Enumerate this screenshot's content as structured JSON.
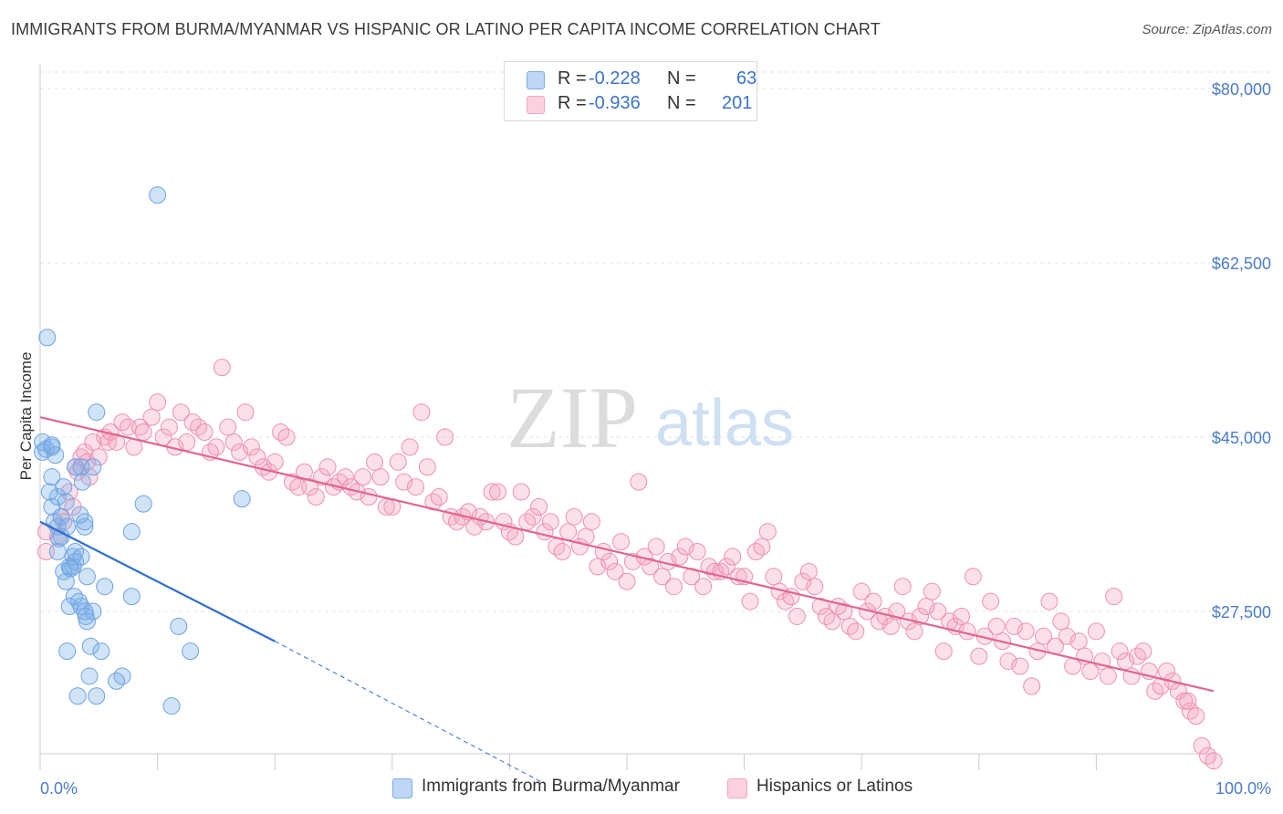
{
  "chart_data": {
    "type": "scatter",
    "title": "IMMIGRANTS FROM BURMA/MYANMAR VS HISPANIC OR LATINO PER CAPITA INCOME CORRELATION CHART",
    "source": "Source: ZipAtlas.com",
    "ylabel": "Per Capita Income",
    "xlabel": "",
    "xlim": [
      0,
      100
    ],
    "ylim": [
      12000,
      82500
    ],
    "x_tick_labels": {
      "left": "0.0%",
      "right": "100.0%"
    },
    "y_ticks": [
      {
        "value": 80000,
        "label": "$80,000"
      },
      {
        "value": 62500,
        "label": "$62,500"
      },
      {
        "value": 45000,
        "label": "$45,000"
      },
      {
        "value": 27500,
        "label": "$27,500"
      }
    ],
    "watermark": {
      "zip": "ZIP",
      "atlas": "atlas"
    },
    "legend": [
      {
        "r_label": "R =",
        "r_value": "-0.228",
        "n_label": "N =",
        "n_value": "63"
      },
      {
        "r_label": "R =",
        "r_value": "-0.936",
        "n_label": "N =",
        "n_value": "201"
      }
    ],
    "series": [
      {
        "name": "Immigrants from Burma/Myanmar",
        "color": "#7aaee8",
        "line_color": "#2f6fce",
        "n": 63,
        "r": -0.228,
        "trend": {
          "x0": 0,
          "y0": 36500,
          "x1": 20,
          "y1": 24500,
          "dash_to_x": 43,
          "dash_to_y": 10200
        },
        "points": [
          [
            0.2,
            44.5
          ],
          [
            0.2,
            43.5
          ],
          [
            0.5,
            43.8
          ],
          [
            0.6,
            55.0
          ],
          [
            1.0,
            44.0
          ],
          [
            1.0,
            41.0
          ],
          [
            1.0,
            38.0
          ],
          [
            1.2,
            36.5
          ],
          [
            1.5,
            39.0
          ],
          [
            1.5,
            36.0
          ],
          [
            1.5,
            33.5
          ],
          [
            1.8,
            37.0
          ],
          [
            1.8,
            35.0
          ],
          [
            2.0,
            40.0
          ],
          [
            2.0,
            31.5
          ],
          [
            2.2,
            30.5
          ],
          [
            2.3,
            36.0
          ],
          [
            2.3,
            23.5
          ],
          [
            2.5,
            28.0
          ],
          [
            2.5,
            32.0
          ],
          [
            2.8,
            33.0
          ],
          [
            2.8,
            32.0
          ],
          [
            3.0,
            42.0
          ],
          [
            3.0,
            33.5
          ],
          [
            3.0,
            32.5
          ],
          [
            3.2,
            19.0
          ],
          [
            3.3,
            28.5
          ],
          [
            3.5,
            33.0
          ],
          [
            3.5,
            28.0
          ],
          [
            3.5,
            42.0
          ],
          [
            3.6,
            40.5
          ],
          [
            3.8,
            36.0
          ],
          [
            3.8,
            36.5
          ],
          [
            3.8,
            27.5
          ],
          [
            4.0,
            26.5
          ],
          [
            4.0,
            31.0
          ],
          [
            4.2,
            21.0
          ],
          [
            4.3,
            24.0
          ],
          [
            4.5,
            42.0
          ],
          [
            4.5,
            27.5
          ],
          [
            4.8,
            19.0
          ],
          [
            4.8,
            47.5
          ],
          [
            5.2,
            23.5
          ],
          [
            5.5,
            30.0
          ],
          [
            6.5,
            20.5
          ],
          [
            7.0,
            21.0
          ],
          [
            7.8,
            29.0
          ],
          [
            7.8,
            35.5
          ],
          [
            8.8,
            38.3
          ],
          [
            10.0,
            69.3
          ],
          [
            11.2,
            18.0
          ],
          [
            11.8,
            26.0
          ],
          [
            12.8,
            23.5
          ],
          [
            17.2,
            38.8
          ],
          [
            1.0,
            44.2
          ],
          [
            1.3,
            43.2
          ],
          [
            2.6,
            31.8
          ],
          [
            3.9,
            27.0
          ],
          [
            2.2,
            38.5
          ],
          [
            0.8,
            39.5
          ],
          [
            1.6,
            34.8
          ],
          [
            2.9,
            29.0
          ],
          [
            3.4,
            37.2
          ]
        ]
      },
      {
        "name": "Hispanics or Latinos",
        "color": "#f4a6c2",
        "line_color": "#e0668f",
        "n": 201,
        "r": -0.936,
        "trend": {
          "x0": 0,
          "y0": 47000,
          "x1": 100,
          "y1": 19500
        },
        "points": [
          [
            0.5,
            35.5
          ],
          [
            0.5,
            33.5
          ],
          [
            1.5,
            35.0
          ],
          [
            1.8,
            37.0
          ],
          [
            2.0,
            36.5
          ],
          [
            2.5,
            39.5
          ],
          [
            2.8,
            38.0
          ],
          [
            3.0,
            42.0
          ],
          [
            3.2,
            41.5
          ],
          [
            3.5,
            43.0
          ],
          [
            3.8,
            43.5
          ],
          [
            4.0,
            42.5
          ],
          [
            4.2,
            41.0
          ],
          [
            4.5,
            44.5
          ],
          [
            5.0,
            43.0
          ],
          [
            5.5,
            45.0
          ],
          [
            5.8,
            44.5
          ],
          [
            6.0,
            45.5
          ],
          [
            6.5,
            44.5
          ],
          [
            7.0,
            46.5
          ],
          [
            7.5,
            46.0
          ],
          [
            8.0,
            44.0
          ],
          [
            8.5,
            46.0
          ],
          [
            8.8,
            45.5
          ],
          [
            9.5,
            47.0
          ],
          [
            10.0,
            48.5
          ],
          [
            10.5,
            45.0
          ],
          [
            11.0,
            46.0
          ],
          [
            11.5,
            44.0
          ],
          [
            12.0,
            47.5
          ],
          [
            12.5,
            44.5
          ],
          [
            13.0,
            46.5
          ],
          [
            13.5,
            46.0
          ],
          [
            14.0,
            45.5
          ],
          [
            14.5,
            43.5
          ],
          [
            15.0,
            44.0
          ],
          [
            15.5,
            52.0
          ],
          [
            16.0,
            46.0
          ],
          [
            16.5,
            44.5
          ],
          [
            17.0,
            43.5
          ],
          [
            17.5,
            47.5
          ],
          [
            18.0,
            44.0
          ],
          [
            18.5,
            43.0
          ],
          [
            19.0,
            42.0
          ],
          [
            19.5,
            41.5
          ],
          [
            20.0,
            42.5
          ],
          [
            20.5,
            45.5
          ],
          [
            21.0,
            45.0
          ],
          [
            21.5,
            40.5
          ],
          [
            22.0,
            40.0
          ],
          [
            22.5,
            41.5
          ],
          [
            23.0,
            40.0
          ],
          [
            23.5,
            39.0
          ],
          [
            24.0,
            41.0
          ],
          [
            24.5,
            42.0
          ],
          [
            25.0,
            40.0
          ],
          [
            25.5,
            40.5
          ],
          [
            26.0,
            41.0
          ],
          [
            26.5,
            40.0
          ],
          [
            27.0,
            39.5
          ],
          [
            27.5,
            41.0
          ],
          [
            28.0,
            39.0
          ],
          [
            28.5,
            42.5
          ],
          [
            29.0,
            41.0
          ],
          [
            29.5,
            38.0
          ],
          [
            30.0,
            38.0
          ],
          [
            30.5,
            42.5
          ],
          [
            31.0,
            40.5
          ],
          [
            31.5,
            44.0
          ],
          [
            32.0,
            40.0
          ],
          [
            32.5,
            47.5
          ],
          [
            33.0,
            42.0
          ],
          [
            33.5,
            38.5
          ],
          [
            34.0,
            39.0
          ],
          [
            34.5,
            45.0
          ],
          [
            35.0,
            37.0
          ],
          [
            35.5,
            36.5
          ],
          [
            36.0,
            37.0
          ],
          [
            36.5,
            37.5
          ],
          [
            37.0,
            36.0
          ],
          [
            37.5,
            37.0
          ],
          [
            38.0,
            36.5
          ],
          [
            38.5,
            39.5
          ],
          [
            39.0,
            39.5
          ],
          [
            39.5,
            36.5
          ],
          [
            40.0,
            35.5
          ],
          [
            40.5,
            35.0
          ],
          [
            41.0,
            39.5
          ],
          [
            41.5,
            36.5
          ],
          [
            42.0,
            37.0
          ],
          [
            42.5,
            38.0
          ],
          [
            43.0,
            35.5
          ],
          [
            43.5,
            36.5
          ],
          [
            44.0,
            34.0
          ],
          [
            44.5,
            33.5
          ],
          [
            45.0,
            35.5
          ],
          [
            45.5,
            37.0
          ],
          [
            46.0,
            34.0
          ],
          [
            46.5,
            35.0
          ],
          [
            47.0,
            36.5
          ],
          [
            47.5,
            32.0
          ],
          [
            48.0,
            33.5
          ],
          [
            48.5,
            32.5
          ],
          [
            49.0,
            31.5
          ],
          [
            49.5,
            34.5
          ],
          [
            50.0,
            30.5
          ],
          [
            50.5,
            32.5
          ],
          [
            51.0,
            40.5
          ],
          [
            51.5,
            33.0
          ],
          [
            52.0,
            32.0
          ],
          [
            52.5,
            34.0
          ],
          [
            53.0,
            31.0
          ],
          [
            53.5,
            32.5
          ],
          [
            54.0,
            30.0
          ],
          [
            54.5,
            33.0
          ],
          [
            55.0,
            34.0
          ],
          [
            55.5,
            31.0
          ],
          [
            56.0,
            33.5
          ],
          [
            56.5,
            30.0
          ],
          [
            57.0,
            32.0
          ],
          [
            57.5,
            31.5
          ],
          [
            58.0,
            31.5
          ],
          [
            58.5,
            32.0
          ],
          [
            59.0,
            33.0
          ],
          [
            59.5,
            31.0
          ],
          [
            60.0,
            31.0
          ],
          [
            60.5,
            28.5
          ],
          [
            61.0,
            33.5
          ],
          [
            61.5,
            34.0
          ],
          [
            62.0,
            35.5
          ],
          [
            62.5,
            31.0
          ],
          [
            63.0,
            29.5
          ],
          [
            63.5,
            28.5
          ],
          [
            64.0,
            29.0
          ],
          [
            64.5,
            27.0
          ],
          [
            65.0,
            30.5
          ],
          [
            65.5,
            31.5
          ],
          [
            66.0,
            30.0
          ],
          [
            66.5,
            28.0
          ],
          [
            67.0,
            27.0
          ],
          [
            67.5,
            26.5
          ],
          [
            68.0,
            28.0
          ],
          [
            68.5,
            27.5
          ],
          [
            69.0,
            26.0
          ],
          [
            69.5,
            25.5
          ],
          [
            70.0,
            29.5
          ],
          [
            70.5,
            27.5
          ],
          [
            71.0,
            28.5
          ],
          [
            71.5,
            26.5
          ],
          [
            72.0,
            27.0
          ],
          [
            72.5,
            26.0
          ],
          [
            73.0,
            27.5
          ],
          [
            73.5,
            30.0
          ],
          [
            74.0,
            26.5
          ],
          [
            74.5,
            25.5
          ],
          [
            75.0,
            27.0
          ],
          [
            75.5,
            28.0
          ],
          [
            76.0,
            29.5
          ],
          [
            76.5,
            27.5
          ],
          [
            77.0,
            23.5
          ],
          [
            77.5,
            26.5
          ],
          [
            78.0,
            26.0
          ],
          [
            78.5,
            27.0
          ],
          [
            79.0,
            25.5
          ],
          [
            79.5,
            31.0
          ],
          [
            80.0,
            23.0
          ],
          [
            80.5,
            25.0
          ],
          [
            81.0,
            28.5
          ],
          [
            81.5,
            26.0
          ],
          [
            82.0,
            24.5
          ],
          [
            82.5,
            22.5
          ],
          [
            83.0,
            26.0
          ],
          [
            83.5,
            22.0
          ],
          [
            84.0,
            25.5
          ],
          [
            84.5,
            20.0
          ],
          [
            85.0,
            23.5
          ],
          [
            85.5,
            25.0
          ],
          [
            86.0,
            28.5
          ],
          [
            86.5,
            24.0
          ],
          [
            87.0,
            26.5
          ],
          [
            87.5,
            25.0
          ],
          [
            88.0,
            22.0
          ],
          [
            88.5,
            24.5
          ],
          [
            89.0,
            23.0
          ],
          [
            89.5,
            21.5
          ],
          [
            90.0,
            25.5
          ],
          [
            90.5,
            22.5
          ],
          [
            91.0,
            21.0
          ],
          [
            91.5,
            29.0
          ],
          [
            92.0,
            23.5
          ],
          [
            92.5,
            22.5
          ],
          [
            93.0,
            21.0
          ],
          [
            93.5,
            23.0
          ],
          [
            94.0,
            23.5
          ],
          [
            94.5,
            21.5
          ],
          [
            95.0,
            19.5
          ],
          [
            95.5,
            20.0
          ],
          [
            96.0,
            21.5
          ],
          [
            96.5,
            20.5
          ],
          [
            97.0,
            19.5
          ],
          [
            97.5,
            18.5
          ],
          [
            98.0,
            17.5
          ],
          [
            98.5,
            17.0
          ],
          [
            99.0,
            14.0
          ],
          [
            99.5,
            13.0
          ],
          [
            100.0,
            12.5
          ],
          [
            97.8,
            18.5
          ]
        ]
      }
    ]
  }
}
